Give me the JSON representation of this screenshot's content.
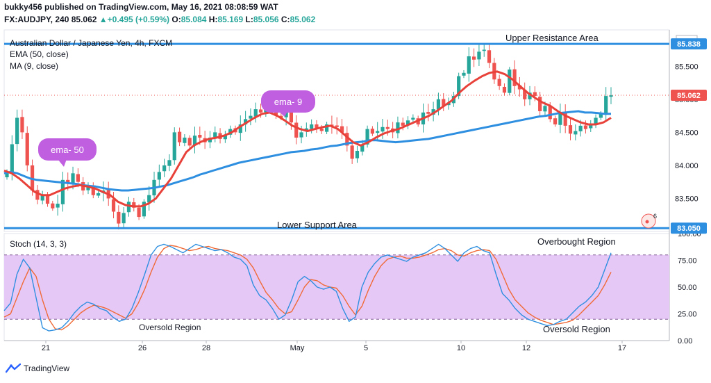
{
  "header": {
    "publisher_line": "bukky456 published on TradingView.com, May 16, 2021 08:08:59 WAT",
    "symbol": "FX:AUDJPY, 240",
    "last": "85.062",
    "change": "+0.495 (+0.59%)",
    "o_label": "O:",
    "o_value": "85.084",
    "h_label": "H:",
    "h_value": "85.169",
    "l_label": "L:",
    "l_value": "85.056",
    "c_label": "C:",
    "c_value": "85.062"
  },
  "footer": {
    "brand": "TradingView"
  },
  "colors": {
    "bull": "#26a69a",
    "bear": "#ef5350",
    "ema": "#2e8fe0",
    "ma": "#e8413a",
    "stoch_k": "#2e8fe0",
    "stoch_d": "#f06a36",
    "band": "#e6c8f7",
    "level": "#2e8fe0"
  },
  "chart_data": [
    {
      "type": "candlestick",
      "title": "Australian Dollar / Japanese Yen, 4h, FXCM",
      "indicators": [
        "EMA (50, close)",
        "MA (9, close)"
      ],
      "currency": "JPY",
      "ylim": [
        83.0,
        86.05
      ],
      "yticks": [
        83.5,
        84.0,
        84.5,
        85.0,
        85.5
      ],
      "xticks": [
        "21",
        "26",
        "28",
        "May",
        "5",
        "10",
        "12",
        "17"
      ],
      "price_badges": [
        {
          "value": "85.838",
          "color": "#2e8fe0"
        },
        {
          "value": "85.062",
          "color": "#ef5350"
        },
        {
          "value": "83.050",
          "color": "#2e8fe0"
        }
      ],
      "levels": [
        {
          "label": "Upper Resistance Area",
          "value": 85.838
        },
        {
          "label": "Lower Support Area",
          "value": 83.05
        }
      ],
      "callouts": [
        {
          "text": "ema- 50"
        },
        {
          "text": "ema- 9"
        }
      ],
      "event_badge": "6",
      "close": [
        83.9,
        84.32,
        84.72,
        84.5,
        84.0,
        83.62,
        83.48,
        83.55,
        83.42,
        83.35,
        83.42,
        83.78,
        83.72,
        83.88,
        83.75,
        83.62,
        83.68,
        83.55,
        83.58,
        83.62,
        83.5,
        83.3,
        83.12,
        83.28,
        83.45,
        83.36,
        83.22,
        83.45,
        83.55,
        83.78,
        83.9,
        84.0,
        84.08,
        84.5,
        84.35,
        84.42,
        84.3,
        84.45,
        84.42,
        84.35,
        84.42,
        84.5,
        84.4,
        84.46,
        84.55,
        84.5,
        84.62,
        84.7,
        84.75,
        84.85,
        84.8,
        84.88,
        84.85,
        84.75,
        84.72,
        84.88,
        84.65,
        84.42,
        84.5,
        84.56,
        84.62,
        84.55,
        84.52,
        84.62,
        84.6,
        84.58,
        84.5,
        84.3,
        84.1,
        84.22,
        84.32,
        84.55,
        84.48,
        84.52,
        84.58,
        84.55,
        84.5,
        84.65,
        84.6,
        84.68,
        84.72,
        84.62,
        84.8,
        84.78,
        84.85,
        85.0,
        84.9,
        84.95,
        85.05,
        85.35,
        85.4,
        85.65,
        85.6,
        85.72,
        85.75,
        85.55,
        85.3,
        85.2,
        85.1,
        85.45,
        85.2,
        85.15,
        85.0,
        85.1,
        85.05,
        84.82,
        84.9,
        84.7,
        84.62,
        84.8,
        84.6,
        84.48,
        84.52,
        84.6,
        84.55,
        84.62,
        84.72,
        84.78,
        85.05,
        85.06
      ],
      "ema50": [
        83.88,
        83.9,
        83.88,
        83.84,
        83.8,
        83.78,
        83.77,
        83.76,
        83.75,
        83.74,
        83.73,
        83.72,
        83.7,
        83.69,
        83.68,
        83.66,
        83.64,
        83.63,
        83.62,
        83.62,
        83.63,
        83.64,
        83.65,
        83.66,
        83.68,
        83.7,
        83.73,
        83.76,
        83.79,
        83.82,
        83.86,
        83.89,
        83.92,
        83.95,
        83.98,
        84.01,
        84.04,
        84.06,
        84.08,
        84.1,
        84.12,
        84.14,
        84.16,
        84.18,
        84.2,
        84.21,
        84.22,
        84.24,
        84.25,
        84.27,
        84.29,
        84.3,
        84.32,
        84.34,
        84.35,
        84.36,
        84.38,
        84.38,
        84.37,
        84.36,
        84.35,
        84.36,
        84.37,
        84.38,
        84.39,
        84.4,
        84.42,
        84.44,
        84.46,
        84.48,
        84.5,
        84.52,
        84.54,
        84.56,
        84.58,
        84.6,
        84.62,
        84.64,
        84.66,
        84.68,
        84.7,
        84.72,
        84.74,
        84.75,
        84.77,
        84.79,
        84.8,
        84.81,
        84.82,
        84.8,
        84.8,
        84.79,
        84.78,
        84.78
      ],
      "ma9": [
        83.92,
        83.88,
        83.8,
        83.7,
        83.6,
        83.55,
        83.55,
        83.6,
        83.65,
        83.68,
        83.7,
        83.68,
        83.65,
        83.6,
        83.55,
        83.45,
        83.4,
        83.38,
        83.38,
        83.42,
        83.5,
        83.65,
        83.8,
        84.0,
        84.2,
        84.3,
        84.36,
        84.4,
        84.42,
        84.45,
        84.5,
        84.58,
        84.65,
        84.72,
        84.78,
        84.8,
        84.75,
        84.68,
        84.6,
        84.55,
        84.52,
        84.55,
        84.58,
        84.6,
        84.55,
        84.45,
        84.35,
        84.3,
        84.35,
        84.42,
        84.48,
        84.52,
        84.55,
        84.6,
        84.65,
        84.7,
        84.75,
        84.82,
        84.9,
        84.98,
        85.1,
        85.2,
        85.28,
        85.35,
        85.4,
        85.42,
        85.38,
        85.3,
        85.2,
        85.1,
        85.02,
        84.95,
        84.9,
        84.82,
        84.75,
        84.7,
        84.65,
        84.62,
        84.62,
        84.65,
        84.72
      ],
      "series": [
        {
          "name": "EMA (50, close)"
        },
        {
          "name": "MA (9, close)"
        }
      ]
    },
    {
      "type": "line",
      "title": "Stoch (14, 3, 3)",
      "ylim": [
        0,
        100
      ],
      "yticks": [
        0.0,
        25.0,
        50.0,
        75.0,
        100.0
      ],
      "ytick_labels": [
        "0.00",
        "25.00",
        "50.00",
        "75.00",
        "100.00"
      ],
      "band": [
        20,
        80
      ],
      "annotations": [
        "Overbought Region",
        "Oversold Region",
        "Oversold Region"
      ],
      "k": [
        28,
        35,
        62,
        76,
        68,
        40,
        12,
        9,
        10,
        12,
        18,
        26,
        32,
        36,
        34,
        30,
        28,
        22,
        18,
        20,
        30,
        45,
        62,
        80,
        88,
        90,
        88,
        85,
        82,
        86,
        90,
        88,
        86,
        84,
        85,
        82,
        78,
        76,
        70,
        52,
        42,
        38,
        30,
        20,
        24,
        38,
        55,
        60,
        56,
        50,
        48,
        50,
        46,
        30,
        18,
        22,
        50,
        64,
        72,
        78,
        80,
        78,
        76,
        74,
        78,
        80,
        82,
        86,
        90,
        86,
        80,
        74,
        82,
        86,
        88,
        84,
        82,
        62,
        44,
        38,
        30,
        24,
        20,
        18,
        16,
        14,
        15,
        18,
        20,
        26,
        32,
        36,
        42,
        50,
        66,
        82
      ],
      "d": [
        22,
        25,
        40,
        55,
        68,
        60,
        38,
        20,
        11,
        10,
        14,
        20,
        26,
        30,
        33,
        32,
        30,
        27,
        24,
        21,
        25,
        35,
        48,
        64,
        78,
        86,
        89,
        88,
        86,
        84,
        85,
        87,
        88,
        86,
        85,
        84,
        82,
        80,
        76,
        68,
        56,
        45,
        38,
        30,
        25,
        27,
        38,
        50,
        57,
        56,
        52,
        50,
        49,
        42,
        32,
        24,
        32,
        47,
        60,
        70,
        76,
        78,
        79,
        77,
        77,
        78,
        80,
        82,
        85,
        86,
        84,
        80,
        79,
        82,
        84,
        85,
        84,
        76,
        62,
        48,
        38,
        32,
        26,
        22,
        19,
        17,
        15,
        16,
        17,
        19,
        24,
        30,
        36,
        42,
        52,
        64
      ],
      "series": [
        {
          "name": "%K"
        },
        {
          "name": "%D"
        }
      ]
    }
  ]
}
